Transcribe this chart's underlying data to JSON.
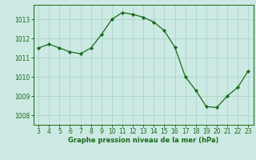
{
  "x": [
    3,
    4,
    5,
    6,
    7,
    8,
    9,
    10,
    11,
    12,
    13,
    14,
    15,
    16,
    17,
    18,
    19,
    20,
    21,
    22,
    23
  ],
  "y": [
    1011.5,
    1011.7,
    1011.5,
    1011.3,
    1011.2,
    1011.5,
    1012.2,
    1013.0,
    1013.35,
    1013.25,
    1013.1,
    1012.85,
    1012.4,
    1011.55,
    1010.0,
    1009.3,
    1008.45,
    1008.4,
    1009.0,
    1009.45,
    1010.3
  ],
  "line_color": "#1a6b1a",
  "marker_color": "#1a6b1a",
  "bg_color": "#cce9e3",
  "grid_color": "#aad4cc",
  "xlabel": "Graphe pression niveau de la mer (hPa)",
  "xlabel_color": "#1a6b1a",
  "tick_color": "#1a6b1a",
  "spine_color": "#1a6b1a",
  "ylim": [
    1007.5,
    1013.75
  ],
  "xlim": [
    2.5,
    23.5
  ],
  "yticks": [
    1008,
    1009,
    1010,
    1011,
    1012,
    1013
  ],
  "xticks": [
    3,
    4,
    5,
    6,
    7,
    8,
    9,
    10,
    11,
    12,
    13,
    14,
    15,
    16,
    17,
    18,
    19,
    20,
    21,
    22,
    23
  ]
}
